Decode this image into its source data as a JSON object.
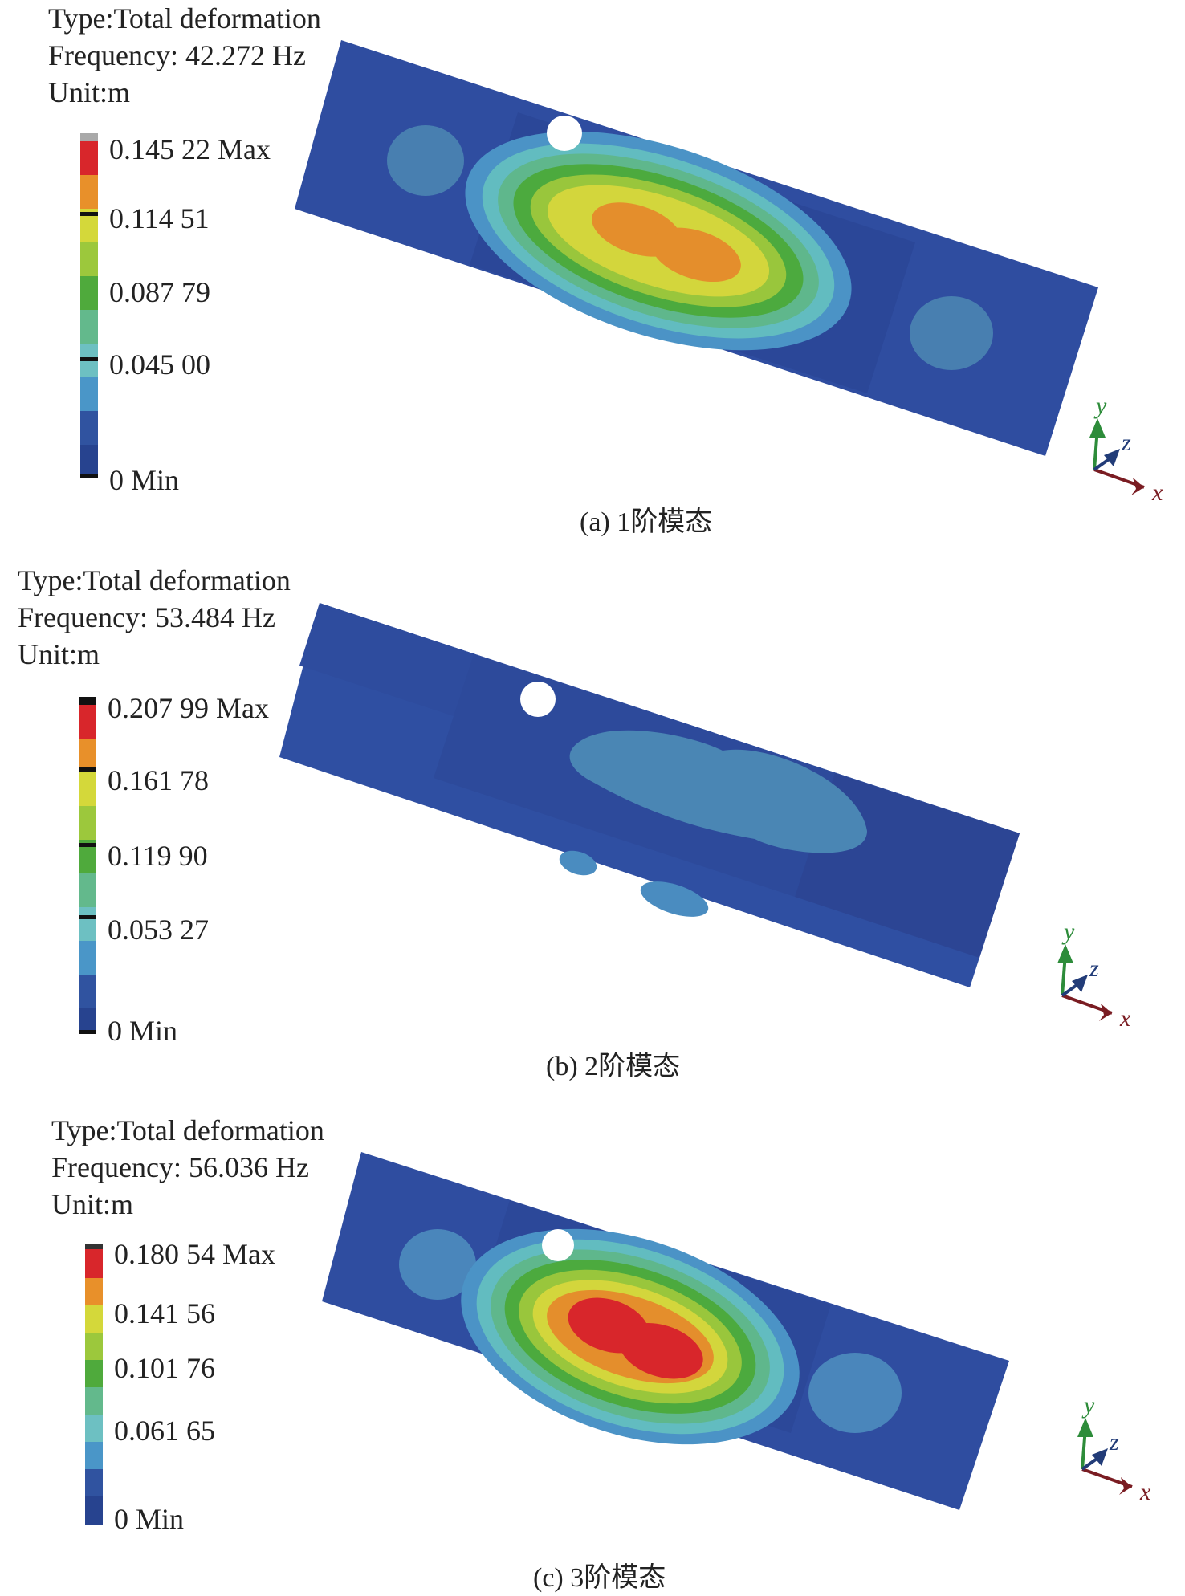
{
  "panels": [
    {
      "type_line": "Type:Total deformation",
      "frequency_line": "Frequency: 42.272 Hz",
      "unit_line": "Unit:m",
      "legend_labels": [
        "0.145 22 Max",
        "0.114 51",
        "0.087 79",
        "0.045 00",
        "0 Min"
      ],
      "caption": "(a) 1阶模态",
      "pattern": "center-peak-orange"
    },
    {
      "type_line": "Type:Total deformation",
      "frequency_line": "Frequency: 53.484 Hz",
      "unit_line": "Unit:m",
      "legend_labels": [
        "0.207 99 Max",
        "0.161 78",
        "0.119 90",
        "0.053 27",
        "0 Min"
      ],
      "caption": "(b) 2阶模态",
      "pattern": "low-cyan-patches"
    },
    {
      "type_line": "Type:Total deformation",
      "frequency_line": "Frequency: 56.036 Hz",
      "unit_line": "Unit:m",
      "legend_labels": [
        "0.180 54 Max",
        "0.141 56",
        "0.101 76",
        "0.061 65",
        "0 Min"
      ],
      "caption": "(c) 3阶模态",
      "pattern": "center-peak-red"
    }
  ],
  "axis_labels": {
    "x": "x",
    "y": "y",
    "z": "z"
  },
  "colormap": [
    "#d8262b",
    "#e8902a",
    "#d4d83a",
    "#9cc83c",
    "#4faa3c",
    "#63b98c",
    "#6dc0c2",
    "#4a96c8",
    "#3053a0",
    "#27438f"
  ]
}
